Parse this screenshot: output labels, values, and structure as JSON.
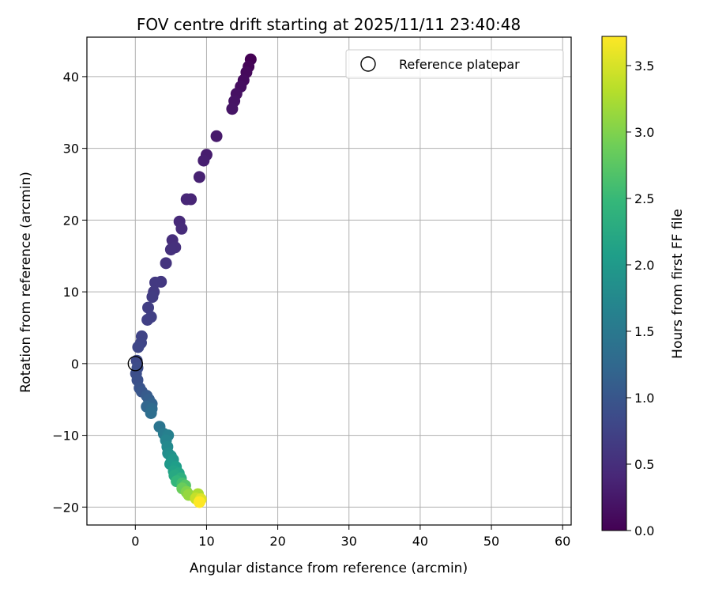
{
  "chart_data": {
    "type": "scatter",
    "title": "FOV centre drift starting at 2025/11/11 23:40:48",
    "xlabel": "Angular distance from reference (arcmin)",
    "ylabel": "Rotation from reference (arcmin)",
    "xlim": [
      -6.8,
      61.2
    ],
    "ylim": [
      -22.5,
      45.5
    ],
    "xticks": [
      0,
      10,
      20,
      30,
      40,
      50,
      60
    ],
    "yticks": [
      -20,
      -10,
      0,
      10,
      20,
      30,
      40
    ],
    "grid": true,
    "legend": {
      "position": "top-right",
      "entries": [
        "Reference platepar"
      ]
    },
    "reference_point": {
      "name": "Reference platepar",
      "x": 0,
      "y": 0
    },
    "colorbar": {
      "label": "Hours from first FF file",
      "range": [
        0,
        3.72
      ],
      "ticks": [
        "0.0",
        "0.5",
        "1.0",
        "1.5",
        "2.0",
        "2.5",
        "3.0",
        "3.5"
      ],
      "colormap": [
        "#440154",
        "#482878",
        "#3e4989",
        "#31688e",
        "#26828e",
        "#1f9e89",
        "#35b779",
        "#6ece58",
        "#b5de2b",
        "#fde725"
      ]
    },
    "points": [
      {
        "x": 16.2,
        "y": 42.4,
        "t": 0.0
      },
      {
        "x": 15.9,
        "y": 41.4,
        "t": 0.04
      },
      {
        "x": 15.6,
        "y": 40.6,
        "t": 0.08
      },
      {
        "x": 15.2,
        "y": 39.5,
        "t": 0.11
      },
      {
        "x": 14.8,
        "y": 38.6,
        "t": 0.14
      },
      {
        "x": 14.2,
        "y": 37.6,
        "t": 0.17
      },
      {
        "x": 13.9,
        "y": 36.6,
        "t": 0.19
      },
      {
        "x": 13.6,
        "y": 35.5,
        "t": 0.21
      },
      {
        "x": 11.4,
        "y": 31.7,
        "t": 0.26
      },
      {
        "x": 10.0,
        "y": 29.1,
        "t": 0.3
      },
      {
        "x": 9.6,
        "y": 28.3,
        "t": 0.32
      },
      {
        "x": 9.0,
        "y": 26.0,
        "t": 0.35
      },
      {
        "x": 7.8,
        "y": 22.9,
        "t": 0.39
      },
      {
        "x": 7.2,
        "y": 22.9,
        "t": 0.4
      },
      {
        "x": 6.2,
        "y": 19.8,
        "t": 0.44
      },
      {
        "x": 6.5,
        "y": 18.8,
        "t": 0.46
      },
      {
        "x": 5.2,
        "y": 17.2,
        "t": 0.49
      },
      {
        "x": 5.6,
        "y": 16.2,
        "t": 0.51
      },
      {
        "x": 5.0,
        "y": 15.9,
        "t": 0.52
      },
      {
        "x": 4.3,
        "y": 14.0,
        "t": 0.56
      },
      {
        "x": 3.6,
        "y": 11.4,
        "t": 0.6
      },
      {
        "x": 2.8,
        "y": 11.3,
        "t": 0.62
      },
      {
        "x": 2.6,
        "y": 10.0,
        "t": 0.64
      },
      {
        "x": 2.4,
        "y": 9.3,
        "t": 0.66
      },
      {
        "x": 1.8,
        "y": 7.8,
        "t": 0.69
      },
      {
        "x": 2.2,
        "y": 6.5,
        "t": 0.71
      },
      {
        "x": 1.7,
        "y": 6.1,
        "t": 0.72
      },
      {
        "x": 0.9,
        "y": 3.8,
        "t": 0.76
      },
      {
        "x": 0.8,
        "y": 2.9,
        "t": 0.78
      },
      {
        "x": 0.4,
        "y": 2.3,
        "t": 0.8
      },
      {
        "x": 0.2,
        "y": 0.4,
        "t": 0.83
      },
      {
        "x": 0.3,
        "y": -0.6,
        "t": 0.86
      },
      {
        "x": 0.1,
        "y": -1.4,
        "t": 0.89
      },
      {
        "x": 0.3,
        "y": -2.3,
        "t": 0.92
      },
      {
        "x": 0.6,
        "y": -3.4,
        "t": 0.96
      },
      {
        "x": 0.9,
        "y": -3.9,
        "t": 1.0
      },
      {
        "x": 1.6,
        "y": -4.5,
        "t": 1.06
      },
      {
        "x": 1.9,
        "y": -5.0,
        "t": 1.12
      },
      {
        "x": 2.3,
        "y": -5.6,
        "t": 1.18
      },
      {
        "x": 1.6,
        "y": -6.0,
        "t": 1.22
      },
      {
        "x": 2.3,
        "y": -6.3,
        "t": 1.28
      },
      {
        "x": 2.2,
        "y": -6.9,
        "t": 1.34
      },
      {
        "x": 3.4,
        "y": -8.8,
        "t": 1.45
      },
      {
        "x": 4.0,
        "y": -9.8,
        "t": 1.55
      },
      {
        "x": 4.6,
        "y": -10.0,
        "t": 1.62
      },
      {
        "x": 4.3,
        "y": -10.7,
        "t": 1.68
      },
      {
        "x": 4.5,
        "y": -11.6,
        "t": 1.75
      },
      {
        "x": 4.6,
        "y": -12.5,
        "t": 1.82
      },
      {
        "x": 5.0,
        "y": -12.9,
        "t": 1.88
      },
      {
        "x": 5.3,
        "y": -13.4,
        "t": 1.95
      },
      {
        "x": 4.9,
        "y": -14.0,
        "t": 2.0
      },
      {
        "x": 5.7,
        "y": -14.4,
        "t": 2.06
      },
      {
        "x": 5.4,
        "y": -15.0,
        "t": 2.12
      },
      {
        "x": 6.1,
        "y": -15.3,
        "t": 2.18
      },
      {
        "x": 5.5,
        "y": -15.6,
        "t": 2.24
      },
      {
        "x": 6.4,
        "y": -16.0,
        "t": 2.34
      },
      {
        "x": 5.8,
        "y": -16.4,
        "t": 2.44
      },
      {
        "x": 6.6,
        "y": -16.7,
        "t": 2.58
      },
      {
        "x": 7.0,
        "y": -17.0,
        "t": 2.72
      },
      {
        "x": 6.6,
        "y": -17.4,
        "t": 2.86
      },
      {
        "x": 7.2,
        "y": -17.9,
        "t": 3.0
      },
      {
        "x": 7.5,
        "y": -18.3,
        "t": 3.12
      },
      {
        "x": 8.8,
        "y": -18.2,
        "t": 3.26
      },
      {
        "x": 8.5,
        "y": -18.8,
        "t": 3.4
      },
      {
        "x": 9.2,
        "y": -18.9,
        "t": 3.54
      },
      {
        "x": 9.0,
        "y": -19.3,
        "t": 3.72
      }
    ]
  }
}
